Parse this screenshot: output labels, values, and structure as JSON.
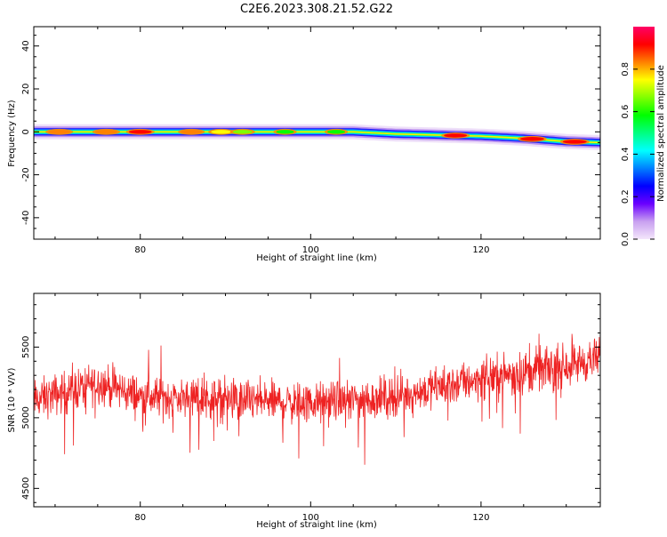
{
  "title": "C2E6.2023.308.21.52.G22",
  "chart_data": [
    {
      "type": "heatmap",
      "xlabel": "Height of straight line (km)",
      "ylabel": "Frequency (Hz)",
      "xlim": [
        67.5,
        134.0
      ],
      "ylim": [
        -50,
        49
      ],
      "x_ticks": [
        80,
        100,
        120
      ],
      "y_ticks": [
        40,
        20,
        0,
        -20,
        -40
      ],
      "grid": false,
      "colorbar": {
        "label": "Normalized spectral amplitude",
        "range": [
          0.0,
          1.0
        ],
        "ticks": [
          "0.0",
          "0.2",
          "0.4",
          "0.6",
          "0.8"
        ],
        "colors": [
          "#f4e6fb",
          "#c8a0f0",
          "#6a00ff",
          "#0000ff",
          "#0080ff",
          "#00ffff",
          "#00ff80",
          "#00ff00",
          "#80ff00",
          "#ffff00",
          "#ff8000",
          "#ff0000",
          "#ff0066"
        ]
      },
      "ridge": {
        "x": [
          67.5,
          80,
          90,
          100,
          105,
          110,
          115,
          120,
          125,
          130,
          134
        ],
        "frequency": [
          0,
          0,
          0,
          0,
          0,
          -1,
          -1.5,
          -2,
          -3,
          -4.5,
          -5
        ]
      },
      "hotspots": [
        {
          "x": 70.5,
          "amplitude": 0.85
        },
        {
          "x": 76,
          "amplitude": 0.85
        },
        {
          "x": 80,
          "amplitude": 0.9
        },
        {
          "x": 86,
          "amplitude": 0.8
        },
        {
          "x": 89.5,
          "amplitude": 0.75
        },
        {
          "x": 92,
          "amplitude": 0.7
        },
        {
          "x": 97,
          "amplitude": 0.6
        },
        {
          "x": 103,
          "amplitude": 0.6
        },
        {
          "x": 117,
          "amplitude": 0.9
        },
        {
          "x": 126,
          "amplitude": 0.95
        },
        {
          "x": 131,
          "amplitude": 0.95
        }
      ]
    },
    {
      "type": "line",
      "xlabel": "Height of straight line (km)",
      "ylabel": "SNR (10 * V/V)",
      "xlim": [
        67.5,
        134.0
      ],
      "ylim": [
        4370,
        5880
      ],
      "x_ticks": [
        80,
        100,
        120
      ],
      "y_ticks": [
        4500,
        5000,
        5500
      ],
      "grid": false,
      "series": [
        {
          "color": "#ee2222",
          "trend": {
            "x": [
              67.5,
              75,
              80,
              90,
              100,
              110,
              120,
              130,
              134
            ],
            "y": [
              5120,
              5250,
              5150,
              5130,
              5100,
              5150,
              5280,
              5370,
              5420
            ]
          },
          "noise_amplitude": 110,
          "samples": 1600
        }
      ]
    }
  ]
}
